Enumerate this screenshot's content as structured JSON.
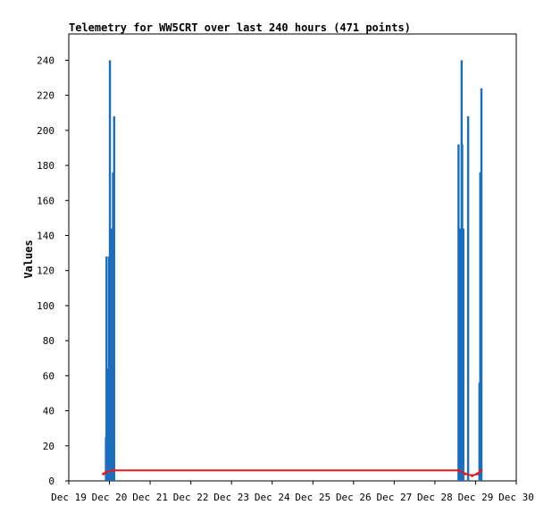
{
  "chart_data": {
    "type": "bar",
    "title": "Telemetry for WW5CRT over last 240 hours (471 points)",
    "xlabel": "",
    "ylabel": "Values",
    "ylim": [
      0,
      255
    ],
    "xlim": [
      "Dec 19",
      "Dec 30"
    ],
    "x_tick_labels": [
      "Dec 19",
      "Dec 20",
      "Dec 21",
      "Dec 22",
      "Dec 23",
      "Dec 24",
      "Dec 25",
      "Dec 26",
      "Dec 27",
      "Dec 28",
      "Dec 29",
      "Dec 30"
    ],
    "y_ticks": [
      0,
      20,
      40,
      60,
      80,
      100,
      120,
      140,
      160,
      180,
      200,
      220,
      240
    ],
    "grid": false,
    "series": [
      {
        "kind": "bar",
        "color": "#1a6ebd",
        "points": [
          {
            "x": "Dec 19 21:50",
            "y": 25
          },
          {
            "x": "Dec 19 22:10",
            "y": 128
          },
          {
            "x": "Dec 19 23:10",
            "y": 64
          },
          {
            "x": "Dec 19 23:40",
            "y": 128
          },
          {
            "x": "Dec 20 00:10",
            "y": 240
          },
          {
            "x": "Dec 20 00:40",
            "y": 128
          },
          {
            "x": "Dec 20 01:10",
            "y": 144
          },
          {
            "x": "Dec 20 02:00",
            "y": 176
          },
          {
            "x": "Dec 20 02:40",
            "y": 208
          },
          {
            "x": "Dec 28 13:50",
            "y": 192
          },
          {
            "x": "Dec 28 14:50",
            "y": 144
          },
          {
            "x": "Dec 28 15:40",
            "y": 240
          },
          {
            "x": "Dec 28 16:00",
            "y": 192
          },
          {
            "x": "Dec 28 16:40",
            "y": 144
          },
          {
            "x": "Dec 28 19:30",
            "y": 208
          },
          {
            "x": "Dec 29 02:10",
            "y": 56
          },
          {
            "x": "Dec 29 02:40",
            "y": 176
          },
          {
            "x": "Dec 29 03:20",
            "y": 224
          }
        ]
      },
      {
        "kind": "line",
        "color": "#e41a1c",
        "points": [
          {
            "x": "Dec 19 20:30",
            "y": 4
          },
          {
            "x": "Dec 19 22:00",
            "y": 5
          },
          {
            "x": "Dec 20 02:40",
            "y": 6
          },
          {
            "x": "Dec 28 14:00",
            "y": 6
          },
          {
            "x": "Dec 28 18:00",
            "y": 4
          },
          {
            "x": "Dec 28 22:00",
            "y": 3
          },
          {
            "x": "Dec 29 01:00",
            "y": 4
          },
          {
            "x": "Dec 29 03:20",
            "y": 6
          }
        ]
      }
    ]
  }
}
